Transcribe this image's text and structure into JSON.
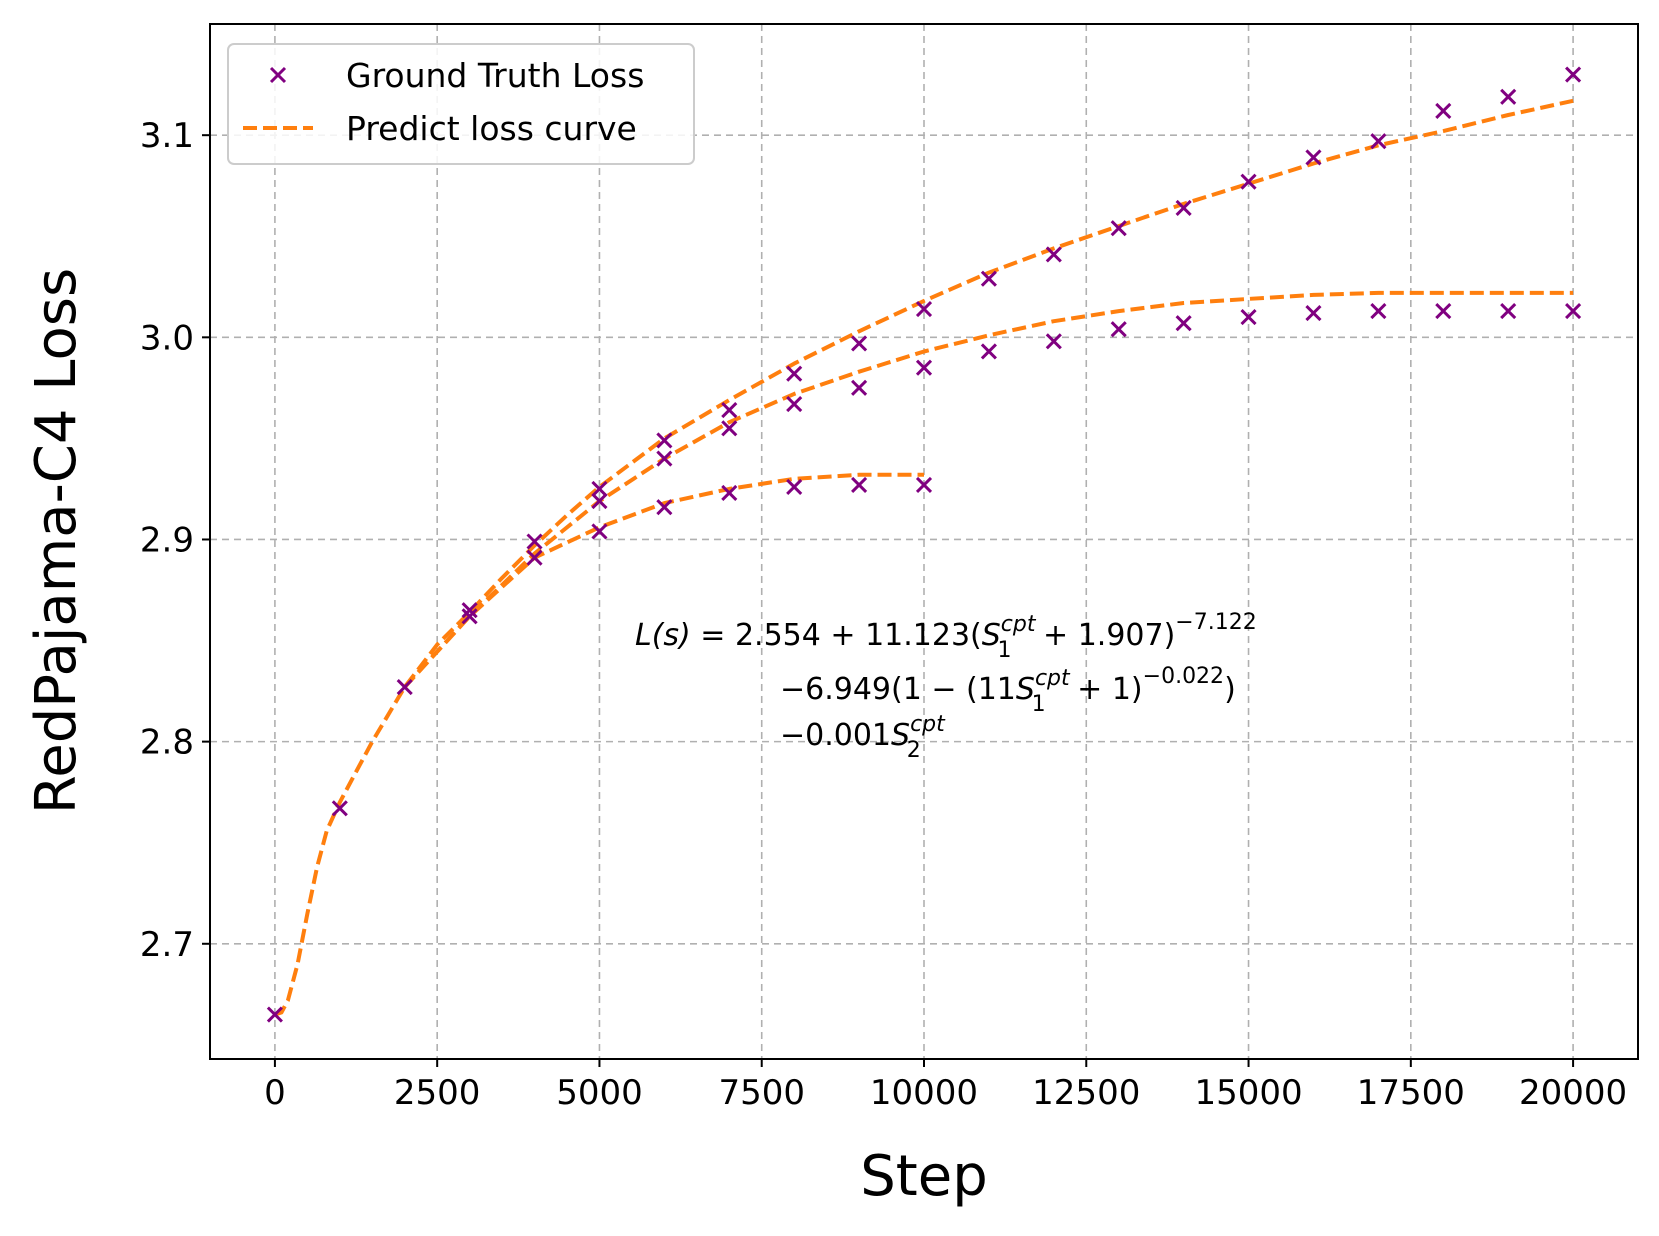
{
  "chart_data": {
    "type": "line",
    "xlabel": "Step",
    "ylabel": "RedPajama-C4 Loss",
    "xlim": [
      -1000,
      21000
    ],
    "ylim": [
      2.643,
      3.155
    ],
    "xticks": [
      0,
      2500,
      5000,
      7500,
      10000,
      12500,
      15000,
      17500,
      20000
    ],
    "xtick_labels": [
      "0",
      "2500",
      "5000",
      "7500",
      "10000",
      "12500",
      "15000",
      "17500",
      "20000"
    ],
    "yticks": [
      2.7,
      2.8,
      2.9,
      3.0,
      3.1
    ],
    "ytick_labels": [
      "2.7",
      "2.8",
      "2.9",
      "3.0",
      "3.1"
    ],
    "grid": true,
    "legend_position": "top-left",
    "legend": [
      {
        "label": "Ground Truth Loss",
        "marker": "x",
        "color": "#800080"
      },
      {
        "label": "Predict loss curve",
        "style": "dashed",
        "color": "#ff7f0e"
      }
    ],
    "series": [
      {
        "name": "Ground Truth Loss",
        "kind": "scatter",
        "color": "#800080",
        "points": [
          [
            0,
            2.665
          ],
          [
            1000,
            2.767
          ],
          [
            2000,
            2.827
          ],
          [
            3000,
            2.865
          ],
          [
            3000,
            2.862
          ],
          [
            4000,
            2.899
          ],
          [
            4000,
            2.891
          ],
          [
            5000,
            2.925
          ],
          [
            5000,
            2.919
          ],
          [
            5000,
            2.904
          ],
          [
            6000,
            2.949
          ],
          [
            6000,
            2.94
          ],
          [
            6000,
            2.916
          ],
          [
            7000,
            2.964
          ],
          [
            7000,
            2.955
          ],
          [
            7000,
            2.923
          ],
          [
            8000,
            2.982
          ],
          [
            8000,
            2.967
          ],
          [
            8000,
            2.926
          ],
          [
            9000,
            2.997
          ],
          [
            9000,
            2.975
          ],
          [
            9000,
            2.927
          ],
          [
            10000,
            3.014
          ],
          [
            10000,
            2.985
          ],
          [
            10000,
            2.927
          ],
          [
            11000,
            3.029
          ],
          [
            11000,
            2.993
          ],
          [
            12000,
            3.041
          ],
          [
            12000,
            2.998
          ],
          [
            13000,
            3.054
          ],
          [
            13000,
            3.004
          ],
          [
            14000,
            3.064
          ],
          [
            14000,
            3.007
          ],
          [
            15000,
            3.077
          ],
          [
            15000,
            3.01
          ],
          [
            16000,
            3.089
          ],
          [
            16000,
            3.012
          ],
          [
            17000,
            3.097
          ],
          [
            17000,
            3.013
          ],
          [
            18000,
            3.112
          ],
          [
            18000,
            3.013
          ],
          [
            19000,
            3.119
          ],
          [
            19000,
            3.013
          ],
          [
            20000,
            3.13
          ],
          [
            20000,
            3.013
          ]
        ]
      },
      {
        "name": "Predict loss curve",
        "kind": "line",
        "color": "#ff7f0e",
        "points": [
          [
            0,
            2.665
          ],
          [
            100,
            2.666
          ],
          [
            200,
            2.672
          ],
          [
            350,
            2.69
          ],
          [
            500,
            2.715
          ],
          [
            650,
            2.738
          ],
          [
            800,
            2.756
          ],
          [
            1000,
            2.77
          ],
          [
            1250,
            2.785
          ],
          [
            1500,
            2.8
          ],
          [
            2000,
            2.827
          ],
          [
            2500,
            2.848
          ],
          [
            3000,
            2.864
          ],
          [
            3500,
            2.881
          ],
          [
            4000,
            2.897
          ],
          [
            4500,
            2.912
          ],
          [
            5000,
            2.926
          ],
          [
            5500,
            2.938
          ],
          [
            6000,
            2.95
          ],
          [
            7000,
            2.969
          ],
          [
            8000,
            2.987
          ],
          [
            9000,
            3.003
          ],
          [
            10000,
            3.018
          ],
          [
            11000,
            3.032
          ],
          [
            12000,
            3.044
          ],
          [
            13000,
            3.055
          ],
          [
            14000,
            3.066
          ],
          [
            15000,
            3.076
          ],
          [
            16000,
            3.086
          ],
          [
            17000,
            3.095
          ],
          [
            18000,
            3.102
          ],
          [
            19000,
            3.11
          ],
          [
            20000,
            3.117
          ]
        ]
      },
      {
        "name": "Predict loss curve",
        "kind": "line",
        "color": "#ff7f0e",
        "points": [
          [
            2000,
            2.827
          ],
          [
            3000,
            2.862
          ],
          [
            4000,
            2.893
          ],
          [
            5000,
            2.919
          ],
          [
            6000,
            2.94
          ],
          [
            7000,
            2.958
          ],
          [
            8000,
            2.972
          ],
          [
            9000,
            2.983
          ],
          [
            10000,
            2.993
          ],
          [
            11000,
            3.001
          ],
          [
            12000,
            3.008
          ],
          [
            13000,
            3.013
          ],
          [
            14000,
            3.017
          ],
          [
            15000,
            3.019
          ],
          [
            16000,
            3.021
          ],
          [
            17000,
            3.022
          ],
          [
            18000,
            3.022
          ],
          [
            19000,
            3.022
          ],
          [
            20000,
            3.022
          ]
        ]
      },
      {
        "name": "Predict loss curve",
        "kind": "line",
        "color": "#ff7f0e",
        "points": [
          [
            2000,
            2.827
          ],
          [
            3000,
            2.862
          ],
          [
            4000,
            2.891
          ],
          [
            5000,
            2.906
          ],
          [
            6000,
            2.918
          ],
          [
            7000,
            2.925
          ],
          [
            8000,
            2.93
          ],
          [
            9000,
            2.932
          ],
          [
            10000,
            2.932
          ]
        ]
      }
    ],
    "annotation": {
      "lines": [
        "L(s) = 2.554 + 11.123(S1^cpt + 1.907)^−7.122",
        "−6.949(1 − (11S1^cpt + 1)^−0.022)",
        "−0.001S2^cpt"
      ],
      "parts": {
        "l1_a": "L(s)",
        "l1_b": " = 2.554 + 11.123(",
        "l1_c": " + 1.907)",
        "l1_exp": "−7.122",
        "l2_a": "−6.949(1 − (11",
        "l2_b": " + 1)",
        "l2_exp": "−0.022",
        "l2_c": ")",
        "l3_a": "−0.001",
        "S": "S",
        "sub1": "1",
        "sub2": "2",
        "cpt": "cpt"
      }
    }
  }
}
